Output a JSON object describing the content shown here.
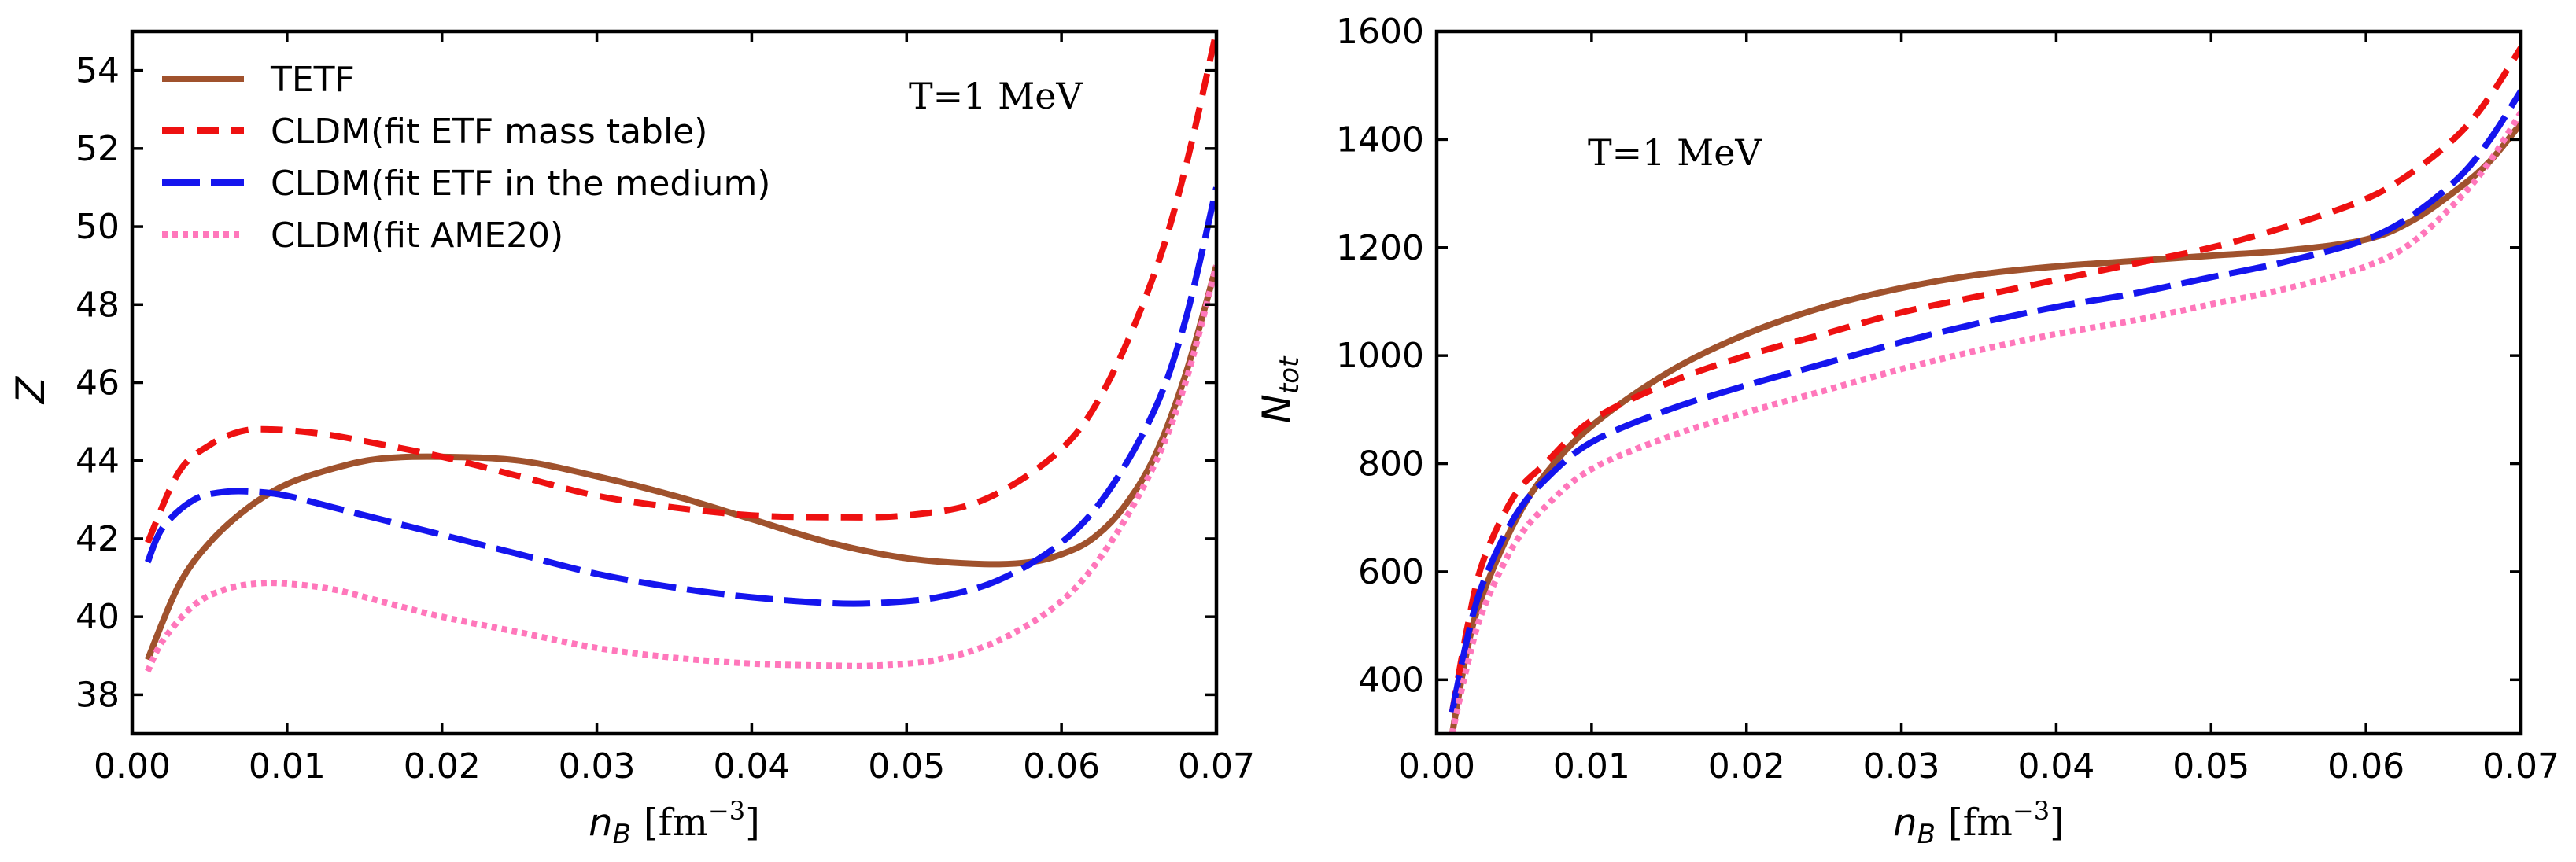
{
  "chart_data": [
    {
      "type": "line",
      "xlabel_var": "n",
      "xlabel_sub": "B",
      "xlabel_unit": "[fm",
      "xlabel_exp": "−3",
      "xlabel_close": "]",
      "ylabel": "Z",
      "annotation": "T=1 MeV",
      "xlim": [
        0.0,
        0.07
      ],
      "ylim": [
        37,
        55
      ],
      "xticks": [
        "0.00",
        "0.01",
        "0.02",
        "0.03",
        "0.04",
        "0.05",
        "0.06",
        "0.07"
      ],
      "yticks": [
        "38",
        "40",
        "42",
        "44",
        "46",
        "48",
        "50",
        "52",
        "54"
      ],
      "legend_location": "top-left",
      "series": [
        {
          "name": "TETF",
          "color": "#a0522d",
          "style": "solid",
          "x": [
            0.001,
            0.003,
            0.005,
            0.0075,
            0.01,
            0.013,
            0.016,
            0.02,
            0.025,
            0.03,
            0.035,
            0.04,
            0.045,
            0.05,
            0.055,
            0.058,
            0.06,
            0.062,
            0.064,
            0.066,
            0.068,
            0.07
          ],
          "y": [
            38.9,
            40.8,
            41.9,
            42.8,
            43.4,
            43.8,
            44.05,
            44.1,
            44.0,
            43.6,
            43.1,
            42.5,
            41.9,
            41.5,
            41.35,
            41.4,
            41.6,
            42.0,
            42.8,
            44.1,
            46.2,
            49.0
          ]
        },
        {
          "name": "CLDM(fit ETF mass table)",
          "color": "#ee1111",
          "style": "dashed",
          "x": [
            0.001,
            0.003,
            0.005,
            0.007,
            0.009,
            0.012,
            0.015,
            0.02,
            0.025,
            0.03,
            0.035,
            0.04,
            0.045,
            0.05,
            0.055,
            0.06,
            0.063,
            0.066,
            0.068,
            0.07
          ],
          "y": [
            41.9,
            43.7,
            44.4,
            44.75,
            44.8,
            44.7,
            44.5,
            44.1,
            43.6,
            43.1,
            42.8,
            42.6,
            42.55,
            42.6,
            43.0,
            44.3,
            46.0,
            48.8,
            51.5,
            55.0
          ]
        },
        {
          "name": "CLDM(fit ETF in the medium)",
          "color": "#1515ee",
          "style": "longdash",
          "x": [
            0.001,
            0.002,
            0.004,
            0.006,
            0.008,
            0.01,
            0.013,
            0.016,
            0.02,
            0.025,
            0.03,
            0.035,
            0.04,
            0.045,
            0.048,
            0.052,
            0.056,
            0.06,
            0.063,
            0.066,
            0.068,
            0.07
          ],
          "y": [
            41.4,
            42.3,
            43.0,
            43.2,
            43.2,
            43.1,
            42.8,
            42.5,
            42.1,
            41.6,
            41.1,
            40.75,
            40.5,
            40.35,
            40.35,
            40.5,
            40.95,
            41.9,
            43.2,
            45.3,
            47.6,
            51.0
          ]
        },
        {
          "name": "CLDM(fit AME20)",
          "color": "#ff77bb",
          "style": "dotted",
          "x": [
            0.001,
            0.002,
            0.004,
            0.006,
            0.008,
            0.01,
            0.013,
            0.016,
            0.02,
            0.025,
            0.03,
            0.035,
            0.04,
            0.045,
            0.048,
            0.052,
            0.056,
            0.06,
            0.063,
            0.066,
            0.068,
            0.07
          ],
          "y": [
            38.6,
            39.4,
            40.3,
            40.7,
            40.85,
            40.85,
            40.7,
            40.4,
            40.0,
            39.6,
            39.2,
            38.95,
            38.8,
            38.75,
            38.75,
            38.9,
            39.4,
            40.4,
            41.8,
            43.9,
            46.0,
            49.0
          ]
        }
      ]
    },
    {
      "type": "line",
      "xlabel_var": "n",
      "xlabel_sub": "B",
      "xlabel_unit": "[fm",
      "xlabel_exp": "−3",
      "xlabel_close": "]",
      "ylabel_var": "N",
      "ylabel_sub": "tot",
      "annotation": "T=1 MeV",
      "xlim": [
        0.0,
        0.07
      ],
      "ylim": [
        300,
        1600
      ],
      "xticks": [
        "0.00",
        "0.01",
        "0.02",
        "0.03",
        "0.04",
        "0.05",
        "0.06",
        "0.07"
      ],
      "yticks": [
        "400",
        "600",
        "800",
        "1000",
        "1200",
        "1400",
        "1600"
      ],
      "series": [
        {
          "name": "TETF",
          "color": "#a0522d",
          "style": "solid",
          "x": [
            0.001,
            0.002,
            0.003,
            0.005,
            0.007,
            0.01,
            0.015,
            0.02,
            0.025,
            0.03,
            0.035,
            0.04,
            0.045,
            0.05,
            0.055,
            0.06,
            0.063,
            0.066,
            0.068,
            0.07
          ],
          "y": [
            300,
            460,
            560,
            690,
            780,
            870,
            970,
            1040,
            1090,
            1125,
            1150,
            1165,
            1175,
            1185,
            1195,
            1215,
            1250,
            1310,
            1360,
            1430
          ]
        },
        {
          "name": "CLDM(fit ETF mass table)",
          "color": "#ee1111",
          "style": "dashed",
          "x": [
            0.001,
            0.002,
            0.003,
            0.005,
            0.007,
            0.01,
            0.015,
            0.02,
            0.025,
            0.03,
            0.035,
            0.04,
            0.045,
            0.05,
            0.055,
            0.06,
            0.063,
            0.066,
            0.068,
            0.07
          ],
          "y": [
            340,
            500,
            620,
            740,
            800,
            880,
            950,
            1000,
            1040,
            1080,
            1110,
            1140,
            1170,
            1200,
            1240,
            1290,
            1340,
            1410,
            1480,
            1570
          ]
        },
        {
          "name": "CLDM(fit ETF in the medium)",
          "color": "#1515ee",
          "style": "longdash",
          "x": [
            0.001,
            0.002,
            0.003,
            0.005,
            0.007,
            0.01,
            0.015,
            0.02,
            0.025,
            0.03,
            0.035,
            0.04,
            0.045,
            0.05,
            0.055,
            0.06,
            0.063,
            0.066,
            0.068,
            0.07
          ],
          "y": [
            340,
            480,
            580,
            700,
            770,
            840,
            900,
            945,
            985,
            1025,
            1060,
            1090,
            1115,
            1145,
            1175,
            1215,
            1260,
            1330,
            1400,
            1490
          ]
        },
        {
          "name": "CLDM(fit AME20)",
          "color": "#ff77bb",
          "style": "dotted",
          "x": [
            0.001,
            0.002,
            0.003,
            0.005,
            0.007,
            0.01,
            0.015,
            0.02,
            0.025,
            0.03,
            0.035,
            0.04,
            0.045,
            0.05,
            0.055,
            0.06,
            0.063,
            0.066,
            0.068,
            0.07
          ],
          "y": [
            300,
            430,
            530,
            650,
            720,
            790,
            850,
            895,
            935,
            975,
            1010,
            1040,
            1065,
            1095,
            1125,
            1165,
            1210,
            1290,
            1360,
            1450
          ]
        }
      ]
    }
  ]
}
